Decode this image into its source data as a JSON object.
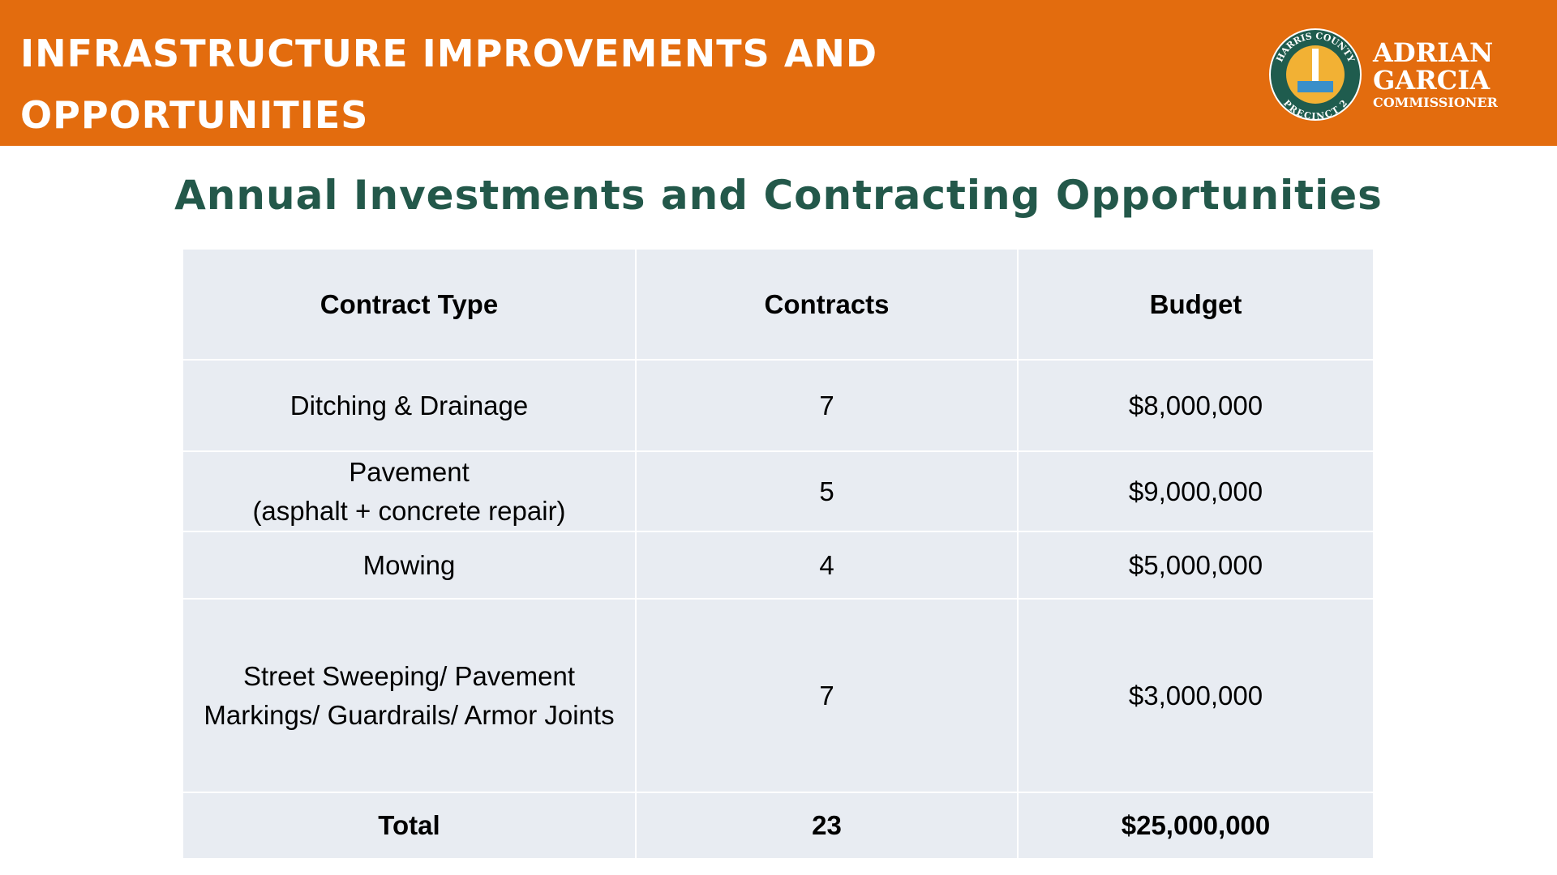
{
  "header": {
    "title_lines": [
      "INFRASTRUCTURE IMPROVEMENTS AND",
      "OPPORTUNITIES"
    ],
    "logo": {
      "ring_top": "HARRIS COUNTY",
      "ring_bottom": "PRECINCT 2",
      "name_lines": [
        "ADRIAN",
        "GARCIA"
      ],
      "role": "COMMISSIONER"
    }
  },
  "subtitle": "Annual Investments and Contracting Opportunities",
  "table": {
    "columns": [
      "Contract Type",
      "Contracts",
      "Budget"
    ],
    "rows": [
      [
        [
          "Ditching & Drainage"
        ],
        "7",
        "$8,000,000"
      ],
      [
        [
          "Pavement",
          "(asphalt + concrete repair)"
        ],
        "5",
        "$9,000,000"
      ],
      [
        [
          "Mowing"
        ],
        "4",
        "$5,000,000"
      ],
      [
        [
          "Street Sweeping/ Pavement Markings/ Guardrails/ Armor Joints"
        ],
        "7",
        "$3,000,000"
      ]
    ],
    "total": [
      "Total",
      "23",
      "$25,000,000"
    ]
  }
}
